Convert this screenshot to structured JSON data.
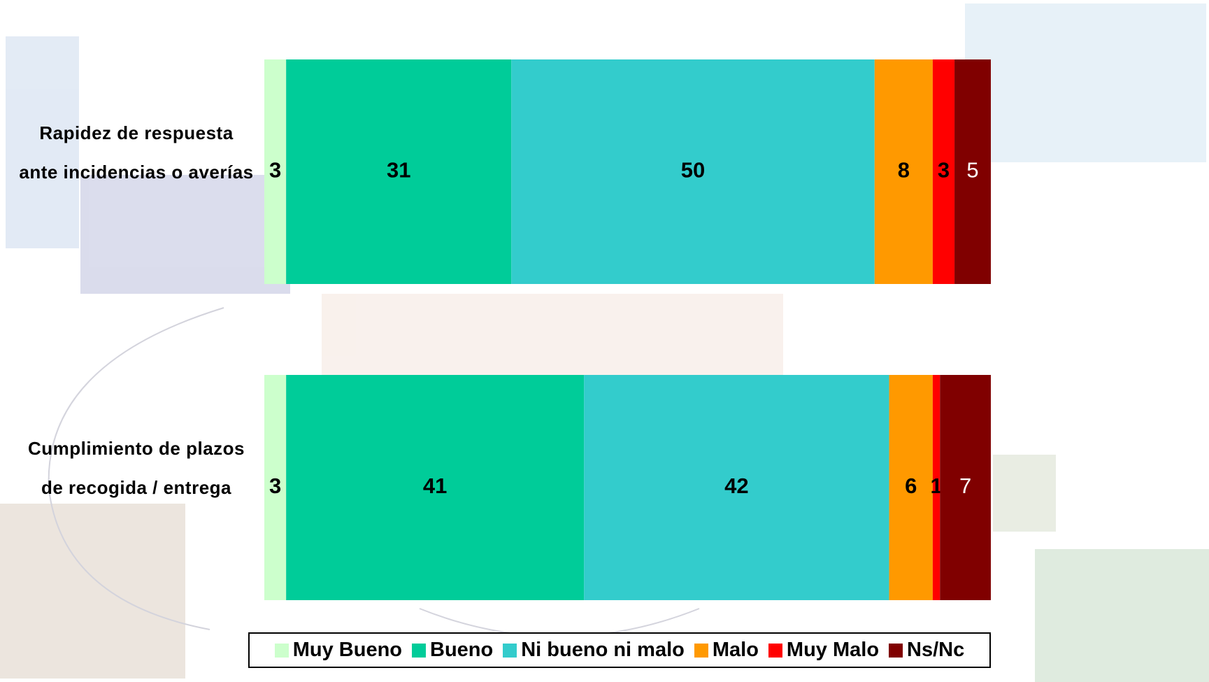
{
  "chart_data": {
    "type": "stacked-bar-horizontal",
    "categories": [
      "Rapidez de respuesta ante incidencias o averías",
      "Cumplimiento de plazos de recogida / entrega"
    ],
    "xlim": [
      0,
      100
    ],
    "series": [
      {
        "name": "Muy Bueno",
        "color": "#ccffcc",
        "label_color": "#000000",
        "values": [
          3,
          3
        ]
      },
      {
        "name": "Bueno",
        "color": "#00cc99",
        "label_color": "#000000",
        "values": [
          31,
          41
        ]
      },
      {
        "name": "Ni bueno ni malo",
        "color": "#33cccc",
        "label_color": "#000000",
        "values": [
          50,
          42
        ]
      },
      {
        "name": "Malo",
        "color": "#ff9900",
        "label_color": "#000000",
        "values": [
          8,
          6
        ]
      },
      {
        "name": "Muy Malo",
        "color": "#ff0000",
        "label_color": "#000000",
        "values": [
          3,
          1
        ]
      },
      {
        "name": "Ns/Nc",
        "color": "#800000",
        "label_color": "#ffffff",
        "values": [
          5,
          7
        ]
      }
    ],
    "legend": "bottom"
  }
}
